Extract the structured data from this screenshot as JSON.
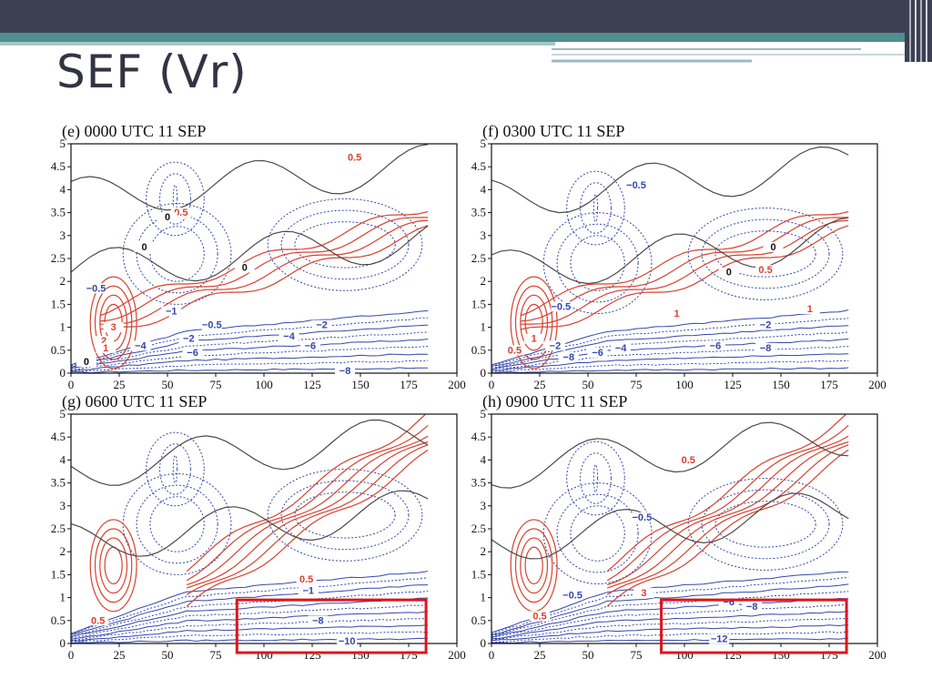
{
  "slide": {
    "title": "SEF (Vr)"
  },
  "colors": {
    "positive": "#d8412f",
    "negative": "#3447a8",
    "zero": "#4a4a4a",
    "highlight": "#e0141a",
    "header": "#3d3f52",
    "band": "#4f8f8e"
  },
  "chart_data": [
    {
      "type": "contour",
      "title": "(e)  0000 UTC 11 SEP",
      "xlim": [
        0,
        200
      ],
      "ylim": [
        0,
        5
      ],
      "xticks": [
        "0",
        "25",
        "50",
        "75",
        "100",
        "125",
        "150",
        "175",
        "200"
      ],
      "yticks": [
        "0",
        "0.5",
        "1",
        "1.5",
        "2",
        "2.5",
        "3",
        "3.5",
        "4",
        "4.5",
        "5"
      ],
      "contour_labels": [
        {
          "text": "0.5",
          "x": 147,
          "y": 4.65,
          "sign": "pos"
        },
        {
          "text": "0.5",
          "x": 57,
          "y": 3.45,
          "sign": "pos"
        },
        {
          "text": "0",
          "x": 50,
          "y": 3.35,
          "sign": "zero"
        },
        {
          "text": "0",
          "x": 38,
          "y": 2.7,
          "sign": "zero"
        },
        {
          "text": "0",
          "x": 90,
          "y": 2.25,
          "sign": "zero"
        },
        {
          "text": "-0.5",
          "x": 13,
          "y": 1.8,
          "sign": "neg"
        },
        {
          "text": "-1",
          "x": 52,
          "y": 1.3,
          "sign": "neg"
        },
        {
          "text": "-0.5",
          "x": 73,
          "y": 1.0,
          "sign": "neg"
        },
        {
          "text": "-2",
          "x": 130,
          "y": 1.0,
          "sign": "neg"
        },
        {
          "text": "-2",
          "x": 61,
          "y": 0.7,
          "sign": "neg"
        },
        {
          "text": "-4",
          "x": 113,
          "y": 0.75,
          "sign": "neg"
        },
        {
          "text": "-6",
          "x": 63,
          "y": 0.4,
          "sign": "neg"
        },
        {
          "text": "-6",
          "x": 124,
          "y": 0.55,
          "sign": "neg"
        },
        {
          "text": "-8",
          "x": 142,
          "y": 0.0,
          "sign": "neg"
        },
        {
          "text": "-4",
          "x": 36,
          "y": 0.55,
          "sign": "neg"
        },
        {
          "text": "3",
          "x": 22,
          "y": 0.95,
          "sign": "pos"
        },
        {
          "text": "2",
          "x": 17,
          "y": 0.65,
          "sign": "pos"
        },
        {
          "text": "1",
          "x": 18,
          "y": 0.5,
          "sign": "pos"
        },
        {
          "text": "0",
          "x": 8,
          "y": 0.2,
          "sign": "zero"
        }
      ]
    },
    {
      "type": "contour",
      "title": "(f)  0300 UTC 11 SEP",
      "xlim": [
        0,
        200
      ],
      "ylim": [
        0,
        5
      ],
      "xticks": [
        "0",
        "25",
        "50",
        "75",
        "100",
        "125",
        "150",
        "175",
        "200"
      ],
      "yticks": [
        "0",
        "0.5",
        "1",
        "1.5",
        "2",
        "2.5",
        "3",
        "3.5",
        "4",
        "4.5",
        "5"
      ],
      "contour_labels": [
        {
          "text": "-0.5",
          "x": 75,
          "y": 4.05,
          "sign": "neg"
        },
        {
          "text": "0",
          "x": 146,
          "y": 2.7,
          "sign": "zero"
        },
        {
          "text": "0",
          "x": 123,
          "y": 2.15,
          "sign": "zero"
        },
        {
          "text": "0.5",
          "x": 142,
          "y": 2.2,
          "sign": "pos"
        },
        {
          "text": "-0.5",
          "x": 36,
          "y": 1.4,
          "sign": "neg"
        },
        {
          "text": "1",
          "x": 96,
          "y": 1.25,
          "sign": "pos"
        },
        {
          "text": "1",
          "x": 165,
          "y": 1.35,
          "sign": "pos"
        },
        {
          "text": "-2",
          "x": 142,
          "y": 1.0,
          "sign": "neg"
        },
        {
          "text": "-4",
          "x": 67,
          "y": 0.5,
          "sign": "neg"
        },
        {
          "text": "-6",
          "x": 116,
          "y": 0.55,
          "sign": "neg"
        },
        {
          "text": "-8",
          "x": 142,
          "y": 0.5,
          "sign": "neg"
        },
        {
          "text": "-2",
          "x": 33,
          "y": 0.55,
          "sign": "neg"
        },
        {
          "text": "-6",
          "x": 55,
          "y": 0.4,
          "sign": "neg"
        },
        {
          "text": "-8",
          "x": 40,
          "y": 0.3,
          "sign": "neg"
        },
        {
          "text": "0.5",
          "x": 12,
          "y": 0.45,
          "sign": "pos"
        },
        {
          "text": "1",
          "x": 22,
          "y": 0.7,
          "sign": "pos"
        }
      ]
    },
    {
      "type": "contour",
      "title": "(g)  0600 UTC 11 SEP",
      "xlim": [
        0,
        200
      ],
      "ylim": [
        0,
        5
      ],
      "xticks": [
        "0",
        "25",
        "50",
        "75",
        "100",
        "125",
        "150",
        "175",
        "200"
      ],
      "yticks": [
        "0",
        "0.5",
        "1",
        "1.5",
        "2",
        "2.5",
        "3",
        "3.5",
        "4",
        "4.5",
        "5"
      ],
      "contour_labels": [
        {
          "text": "0.5",
          "x": 122,
          "y": 1.35,
          "sign": "pos"
        },
        {
          "text": "-1",
          "x": 123,
          "y": 1.1,
          "sign": "neg"
        },
        {
          "text": "-8",
          "x": 128,
          "y": 0.45,
          "sign": "neg"
        },
        {
          "text": "-10",
          "x": 143,
          "y": 0.0,
          "sign": "neg"
        },
        {
          "text": "0.5",
          "x": 14,
          "y": 0.45,
          "sign": "pos"
        }
      ],
      "highlight_box": {
        "x0": 86,
        "x1": 184,
        "y0": -0.2,
        "y1": 0.95
      }
    },
    {
      "type": "contour",
      "title": "(h)  0900 UTC 11 SEP",
      "xlim": [
        0,
        200
      ],
      "ylim": [
        0,
        5
      ],
      "xticks": [
        "0",
        "25",
        "50",
        "75",
        "100",
        "125",
        "150",
        "175",
        "200"
      ],
      "yticks": [
        "0",
        "0.5",
        "1",
        "1.5",
        "2",
        "2.5",
        "3",
        "3.5",
        "4",
        "4.5",
        "5"
      ],
      "contour_labels": [
        {
          "text": "0.5",
          "x": 102,
          "y": 3.95,
          "sign": "pos"
        },
        {
          "text": "-0.5",
          "x": 78,
          "y": 2.7,
          "sign": "neg"
        },
        {
          "text": "-0.5",
          "x": 42,
          "y": 1.0,
          "sign": "neg"
        },
        {
          "text": "3",
          "x": 79,
          "y": 1.05,
          "sign": "pos"
        },
        {
          "text": "0.5",
          "x": 25,
          "y": 0.55,
          "sign": "pos"
        },
        {
          "text": "-6",
          "x": 123,
          "y": 0.85,
          "sign": "neg"
        },
        {
          "text": "-8",
          "x": 135,
          "y": 0.75,
          "sign": "neg"
        },
        {
          "text": "-12",
          "x": 118,
          "y": 0.05,
          "sign": "neg"
        }
      ],
      "highlight_box": {
        "x0": 88,
        "x1": 184,
        "y0": -0.2,
        "y1": 0.95
      }
    }
  ]
}
